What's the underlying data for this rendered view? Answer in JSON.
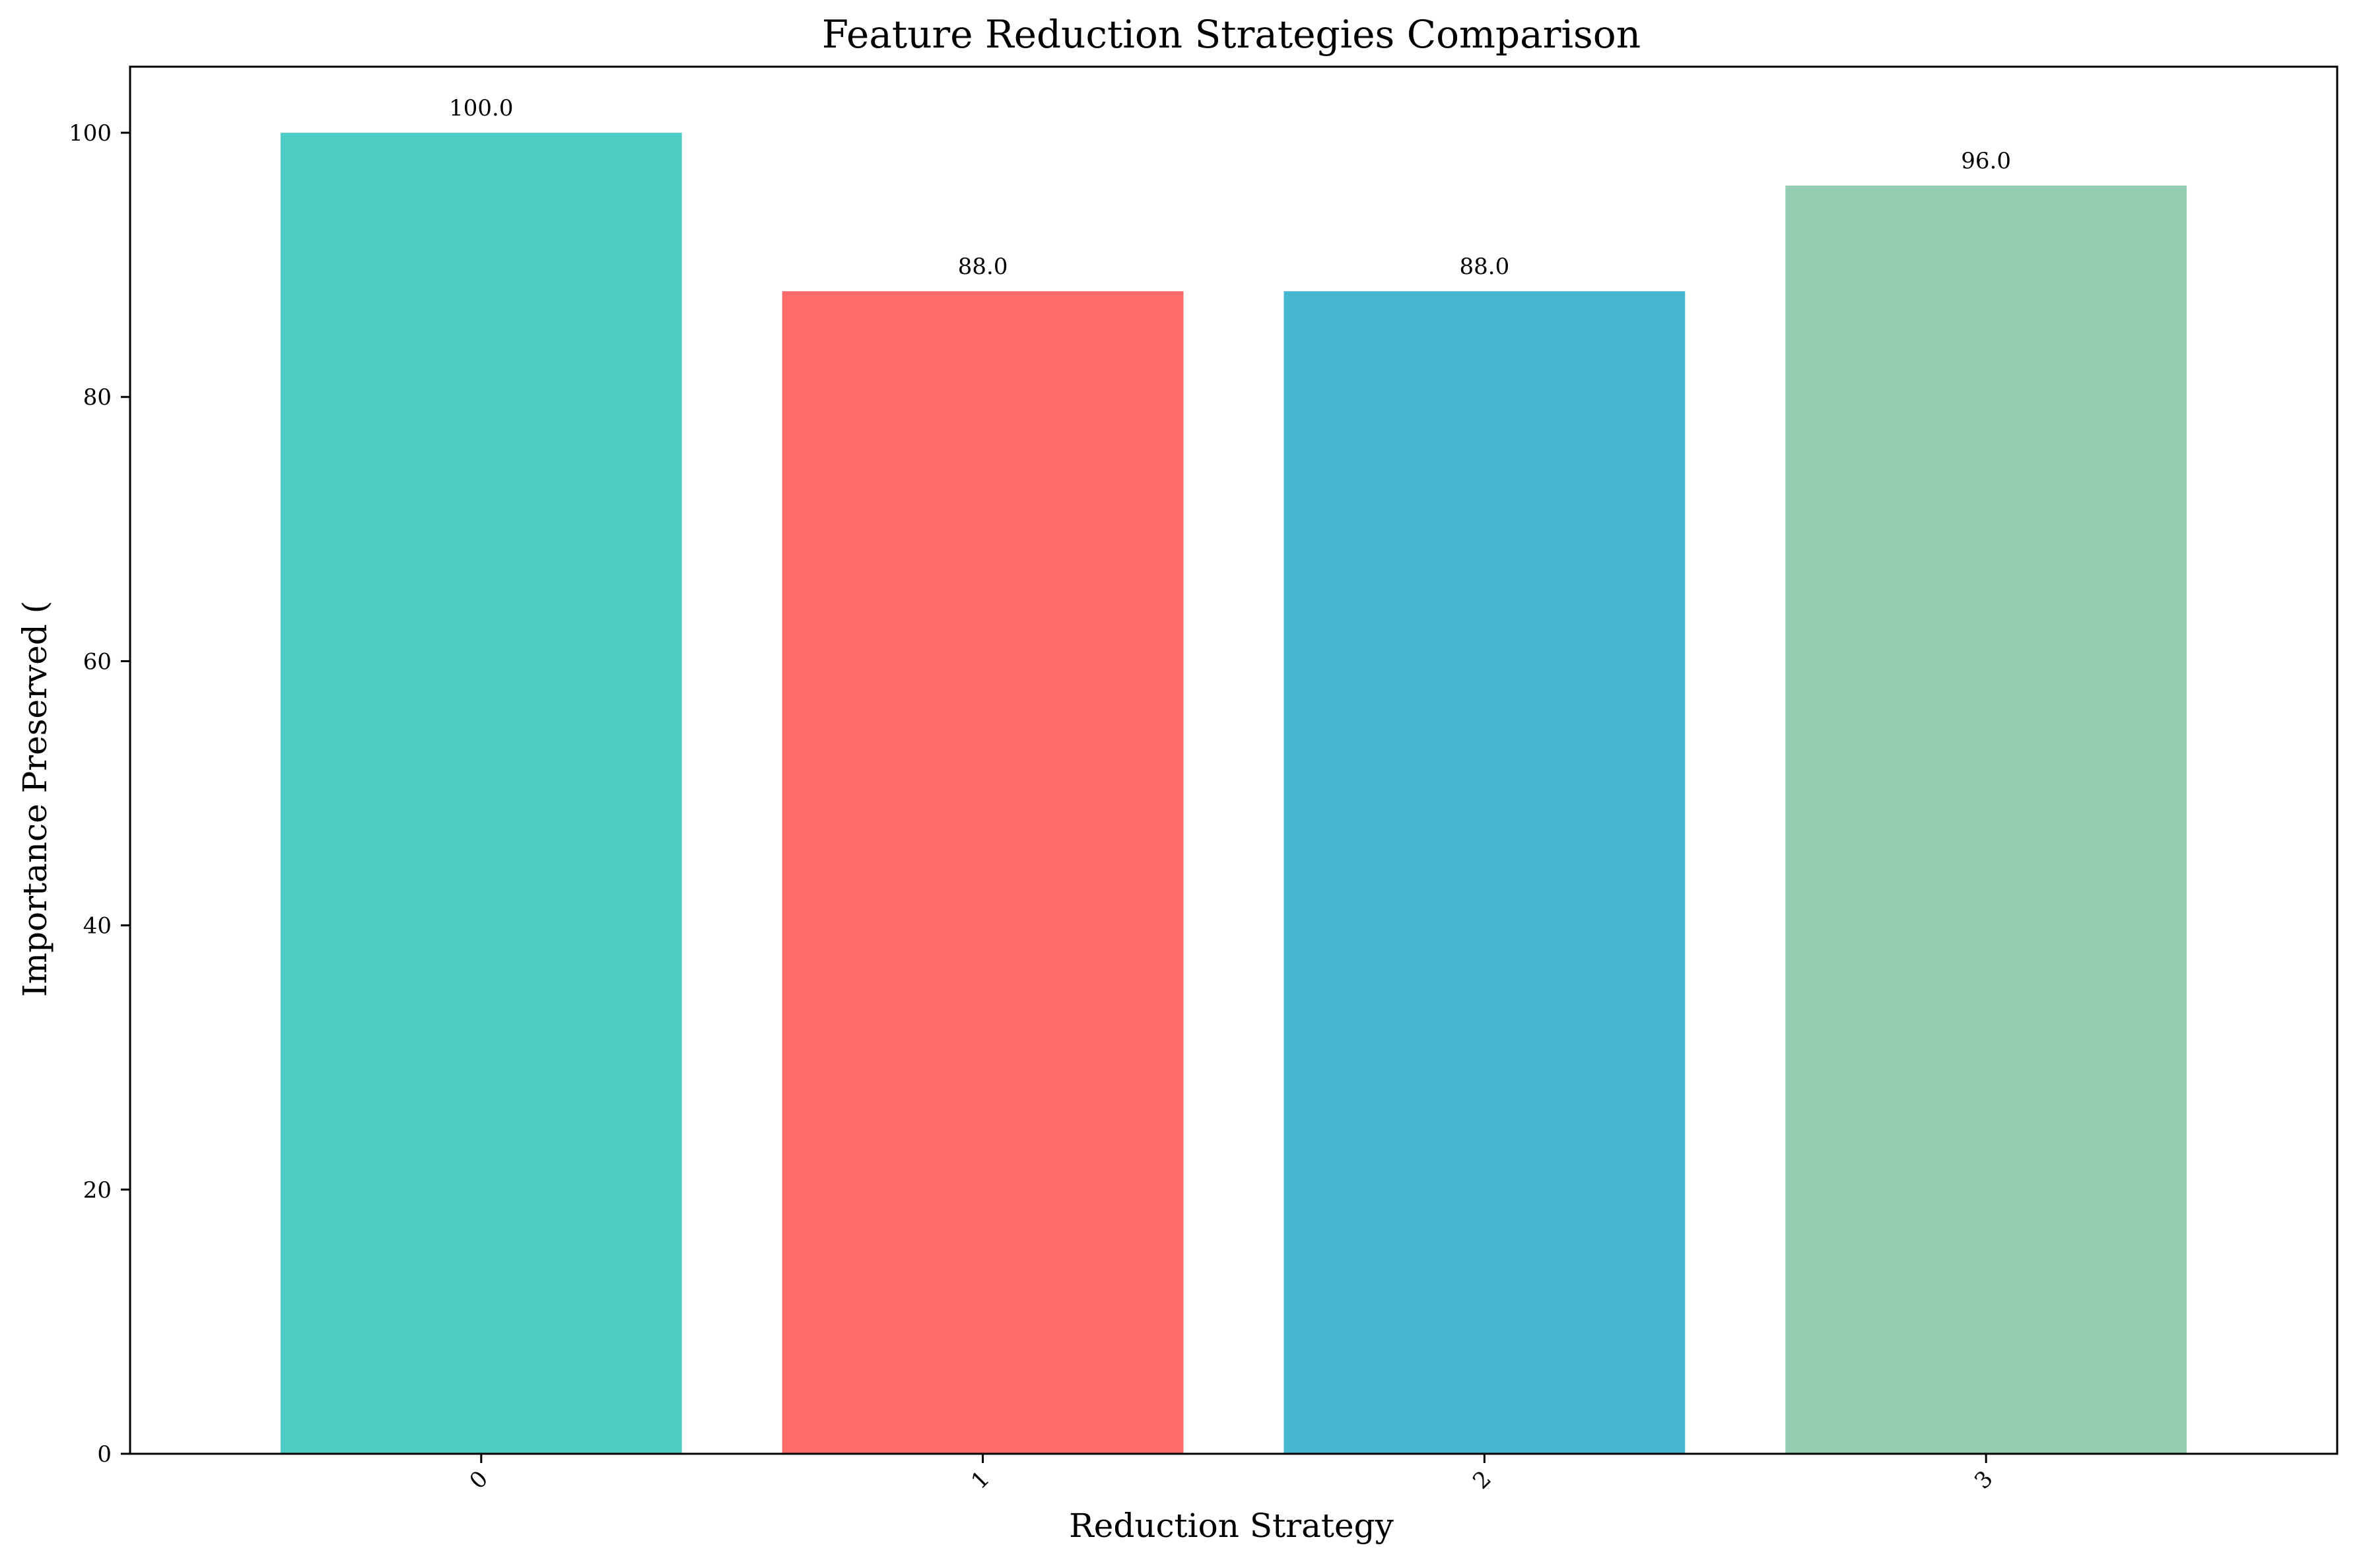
{
  "chart_data": {
    "type": "bar",
    "title": "Feature Reduction Strategies Comparison",
    "xlabel": "Reduction Strategy",
    "ylabel": "Importance Preserved (",
    "categories": [
      "0",
      "1",
      "2",
      "3"
    ],
    "values": [
      100.0,
      88.0,
      88.0,
      96.0
    ],
    "value_labels": [
      "100.0",
      "88.0",
      "88.0",
      "96.0"
    ],
    "colors": [
      "#4ECDC4",
      "#FF6B6B",
      "#45B7D1",
      "#96CEB4"
    ],
    "ylim": [
      0,
      105
    ],
    "yticks": [
      0,
      20,
      40,
      60,
      80,
      100
    ],
    "ytick_labels": [
      "0",
      "20",
      "40",
      "60",
      "80",
      "100"
    ],
    "xtick_rotation": "45",
    "grid": false,
    "legend": false
  }
}
